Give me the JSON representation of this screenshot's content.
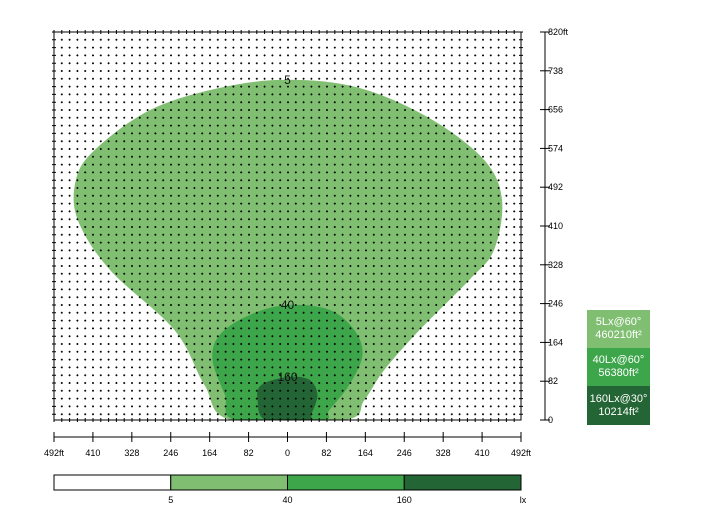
{
  "chart_data": {
    "type": "isolux contour",
    "x_unit": "ft",
    "y_unit": "ft",
    "xlim": [
      -492,
      492
    ],
    "ylim": [
      0,
      820
    ],
    "x_ticks": [
      -492,
      -410,
      -328,
      -246,
      -164,
      -82,
      0,
      82,
      164,
      246,
      328,
      410,
      492
    ],
    "x_tick_labels": [
      "492ft",
      "410",
      "328",
      "246",
      "164",
      "82",
      "0",
      "82",
      "164",
      "246",
      "328",
      "410",
      "492ft"
    ],
    "y_ticks": [
      0,
      82,
      164,
      246,
      328,
      410,
      492,
      574,
      656,
      738,
      820
    ],
    "y_tick_labels": [
      "0",
      "82",
      "164",
      "246",
      "328",
      "410",
      "492",
      "574",
      "656",
      "738",
      "820ft"
    ],
    "grid": "dot grid",
    "contours": [
      {
        "level": 5,
        "label": "5",
        "color": "#80bf72",
        "points": [
          [
            0,
            719
          ],
          [
            151,
            702
          ],
          [
            299,
            638
          ],
          [
            414,
            550
          ],
          [
            452,
            465
          ],
          [
            435,
            359
          ],
          [
            383,
            296
          ],
          [
            278,
            190
          ],
          [
            204,
            106
          ],
          [
            162,
            42
          ],
          [
            120,
            0
          ],
          [
            -118,
            0
          ],
          [
            -175,
            74
          ],
          [
            -238,
            190
          ],
          [
            -374,
            317
          ],
          [
            -442,
            423
          ],
          [
            -446,
            507
          ],
          [
            -406,
            571
          ],
          [
            -290,
            655
          ],
          [
            -143,
            702
          ]
        ]
      },
      {
        "level": 40,
        "label": "40",
        "color": "#3da64a",
        "points": [
          [
            0,
            243
          ],
          [
            88,
            233
          ],
          [
            141,
            190
          ],
          [
            158,
            137
          ],
          [
            130,
            74
          ],
          [
            88,
            21
          ],
          [
            70,
            0
          ],
          [
            -110,
            0
          ],
          [
            -132,
            53
          ],
          [
            -158,
            127
          ],
          [
            -143,
            180
          ],
          [
            -80,
            222
          ]
        ]
      },
      {
        "level": 160,
        "label": "160",
        "color": "#236534",
        "points": [
          [
            0,
            91
          ],
          [
            46,
            85
          ],
          [
            63,
            53
          ],
          [
            50,
            11
          ],
          [
            46,
            0
          ],
          [
            -46,
            0
          ],
          [
            -63,
            42
          ],
          [
            -55,
            74
          ]
        ]
      }
    ],
    "color_scale": {
      "colors": [
        "#ffffff",
        "#80bf72",
        "#3da64a",
        "#236534"
      ],
      "labels": [
        "5",
        "40",
        "160"
      ],
      "unit": "lx"
    },
    "legend": [
      {
        "line1": "5Lx@60°",
        "line2": "460210ft²",
        "color": "#80bf72"
      },
      {
        "line1": "40Lx@60°",
        "line2": "56380ft²",
        "color": "#3da64a"
      },
      {
        "line1": "160Lx@30°",
        "line2": "10214ft²",
        "color": "#236534"
      }
    ]
  }
}
